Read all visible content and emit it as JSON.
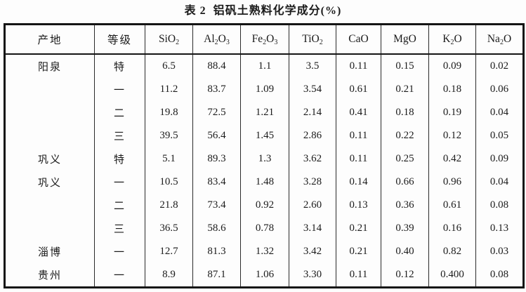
{
  "title": "表 2  铝矾土熟料化学成分(%)",
  "table": {
    "columns": [
      {
        "key": "origin",
        "label": "产地",
        "cjk": true
      },
      {
        "key": "grade",
        "label": "等级",
        "cjk": true
      },
      {
        "key": "SiO2",
        "label": "SiO_2",
        "cjk": false
      },
      {
        "key": "Al2O3",
        "label": "Al_2O_3",
        "cjk": false
      },
      {
        "key": "Fe2O3",
        "label": "Fe_2O_3",
        "cjk": false
      },
      {
        "key": "TiO2",
        "label": "TiO_2",
        "cjk": false
      },
      {
        "key": "CaO",
        "label": "CaO",
        "cjk": false
      },
      {
        "key": "MgO",
        "label": "MgO",
        "cjk": false
      },
      {
        "key": "K2O",
        "label": "K_2O",
        "cjk": false
      },
      {
        "key": "Na2O",
        "label": "Na_2O",
        "cjk": false
      }
    ],
    "rows": [
      [
        "阳泉",
        "特",
        "6.5",
        "88.4",
        "1.1",
        "3.5",
        "0.11",
        "0.15",
        "0.09",
        "0.02"
      ],
      [
        "",
        "一",
        "11.2",
        "83.7",
        "1.09",
        "3.54",
        "0.61",
        "0.21",
        "0.18",
        "0.06"
      ],
      [
        "",
        "二",
        "19.8",
        "72.5",
        "1.21",
        "2.14",
        "0.41",
        "0.18",
        "0.19",
        "0.04"
      ],
      [
        "",
        "三",
        "39.5",
        "56.4",
        "1.45",
        "2.86",
        "0.11",
        "0.22",
        "0.12",
        "0.05"
      ],
      [
        "巩义",
        "特",
        "5.1",
        "89.3",
        "1.3",
        "3.62",
        "0.11",
        "0.25",
        "0.42",
        "0.09"
      ],
      [
        "巩义",
        "一",
        "10.5",
        "83.4",
        "1.48",
        "3.28",
        "0.14",
        "0.66",
        "0.96",
        "0.04"
      ],
      [
        "",
        "二",
        "21.8",
        "73.4",
        "0.92",
        "2.60",
        "0.13",
        "0.36",
        "0.61",
        "0.08"
      ],
      [
        "",
        "三",
        "36.5",
        "58.6",
        "0.78",
        "3.14",
        "0.21",
        "0.39",
        "0.16",
        "0.13"
      ],
      [
        "淄博",
        "一",
        "12.7",
        "81.3",
        "1.32",
        "3.42",
        "0.21",
        "0.40",
        "0.82",
        "0.03"
      ],
      [
        "贵州",
        "一",
        "8.9",
        "87.1",
        "1.06",
        "3.30",
        "0.11",
        "0.12",
        "0.400",
        "0.08"
      ]
    ]
  },
  "colors": {
    "background": "#fdfdfd",
    "border": "#141414",
    "text": "#1b1b1b"
  }
}
